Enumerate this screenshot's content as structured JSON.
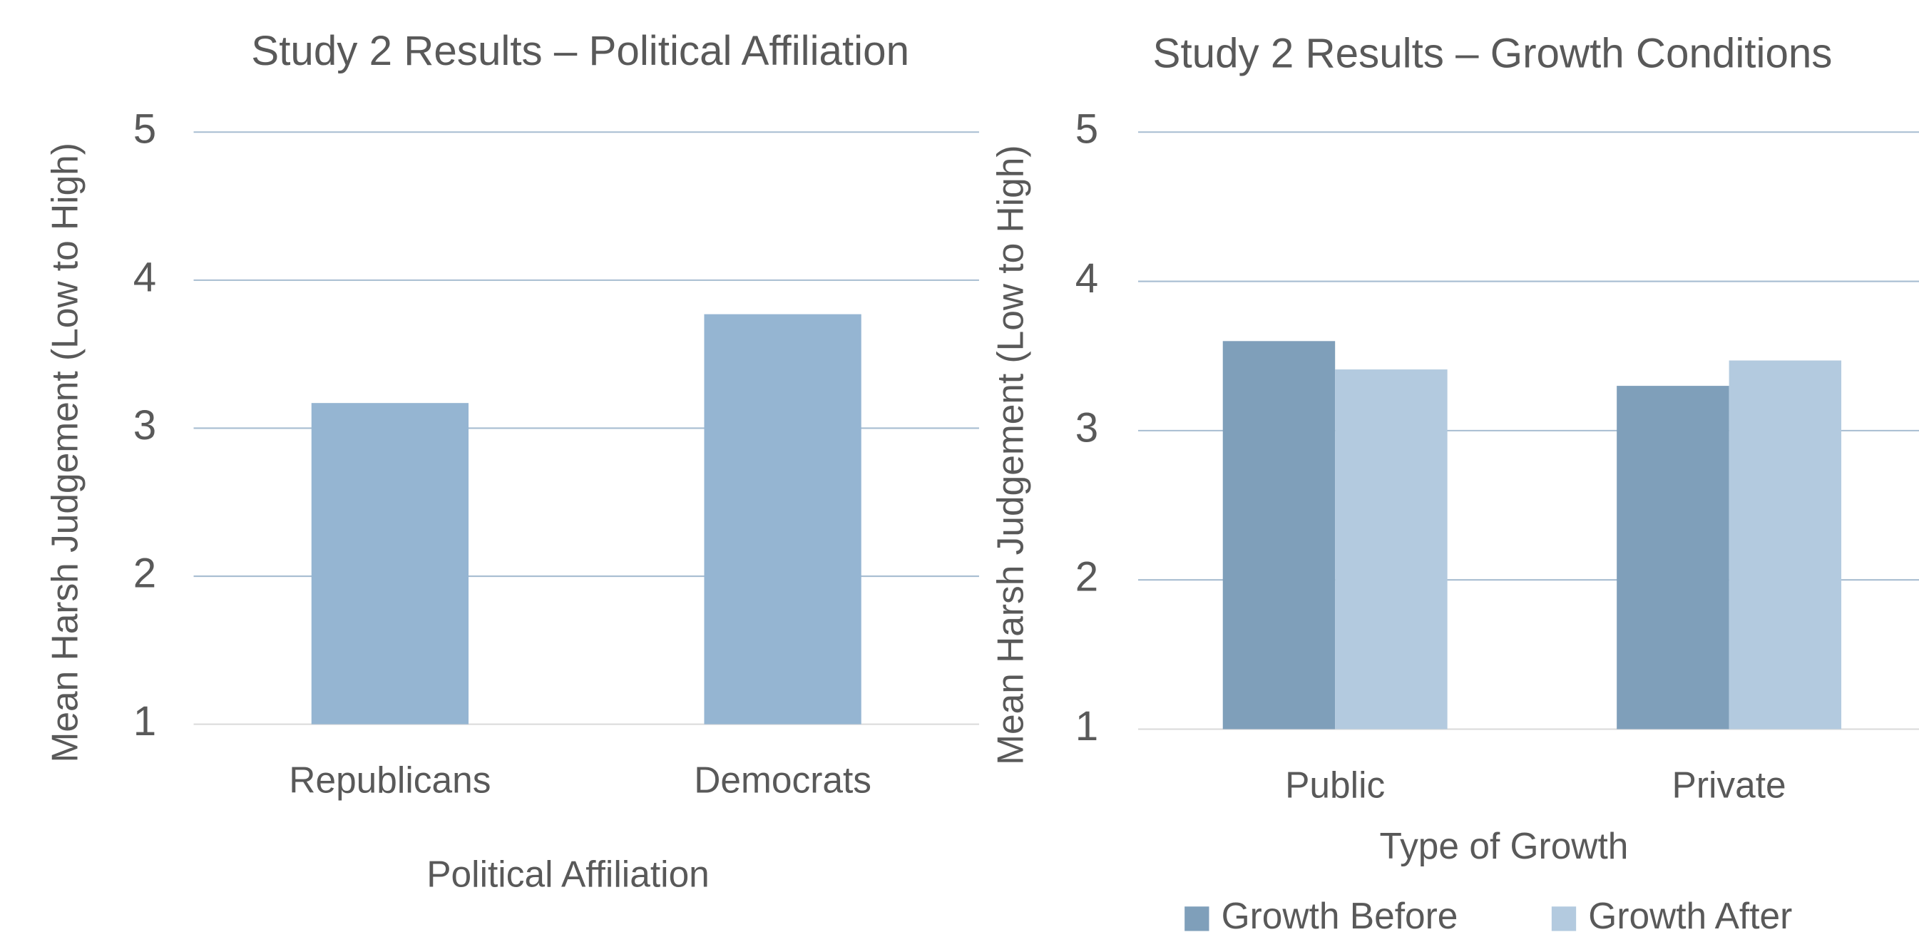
{
  "chart_data": [
    {
      "type": "bar",
      "title": "Study 2 Results – Political Affiliation",
      "x_label": "Political Affiliation",
      "y_label": "Mean Harsh Judgement (Low to High)",
      "categories": [
        "Republicans",
        "Democrats"
      ],
      "values": [
        3.17,
        3.77
      ],
      "color": "#95b5d2",
      "ylim": [
        1,
        5
      ],
      "yticks": [
        1,
        2,
        3,
        4,
        5
      ],
      "grid": true
    },
    {
      "type": "bar",
      "title": "Study 2 Results – Growth Conditions",
      "x_label": "Type of Growth",
      "y_label": "Mean Harsh Judgement (Low to High)",
      "categories": [
        "Public",
        "Private"
      ],
      "series": [
        {
          "name": "Growth Before",
          "color": "#7f9fba",
          "values": [
            3.6,
            3.3
          ]
        },
        {
          "name": "Growth After",
          "color": "#b3cadf",
          "values": [
            3.41,
            3.47
          ]
        }
      ],
      "ylim": [
        1,
        5
      ],
      "yticks": [
        1,
        2,
        3,
        4,
        5
      ],
      "grid": true,
      "legend": "bottom"
    }
  ]
}
